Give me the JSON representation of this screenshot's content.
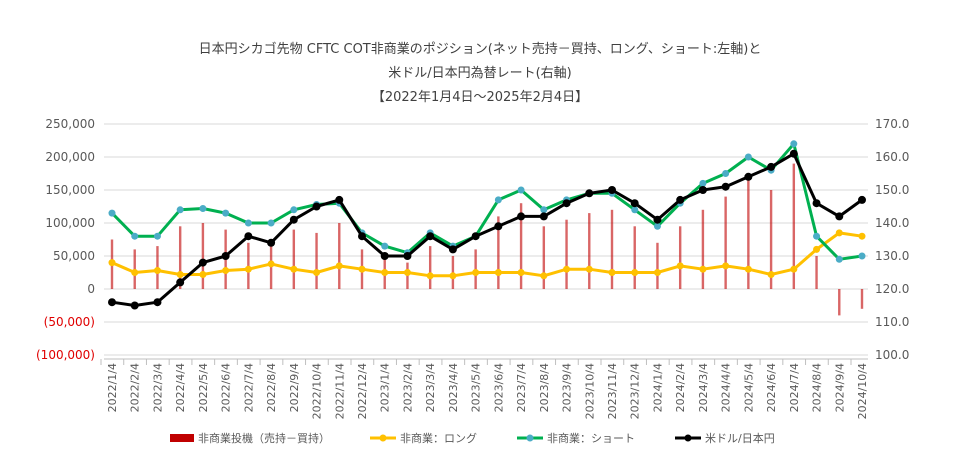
{
  "title_lines": [
    "日本円シカゴ先物 CFTC  COT非商業のポジション(ネット売持－買持、ロング、ショート:左軸)と",
    "米ドル/日本円為替レート(右軸)",
    "【2022年1月4日～2025年2月4日】"
  ],
  "chart_data": {
    "type": "bar+line",
    "title": "日本円シカゴ先物 CFTC  COT非商業のポジション(ネット売持－買持、ロング、ショート:左軸)と 米ドル/日本円為替レート(右軸) 【2022年1月4日～2025年2月4日】",
    "x": [
      "2022/1/4",
      "2022/2/4",
      "2022/3/4",
      "2022/4/4",
      "2022/5/4",
      "2022/6/4",
      "2022/7/4",
      "2022/8/4",
      "2022/9/4",
      "2022/10/4",
      "2022/11/4",
      "2022/12/4",
      "2023/1/4",
      "2023/2/4",
      "2023/3/4",
      "2023/4/4",
      "2023/5/4",
      "2023/6/4",
      "2023/7/4",
      "2023/8/4",
      "2023/9/4",
      "2023/10/4",
      "2023/11/4",
      "2023/12/4",
      "2024/1/4",
      "2024/2/4",
      "2024/3/4",
      "2024/4/4",
      "2024/5/4",
      "2024/6/4",
      "2024/7/4",
      "2024/8/4",
      "2024/9/4",
      "2024/10/4"
    ],
    "left_axis": {
      "min": -100000,
      "max": 250000,
      "ticks": [
        "(100,000)",
        "(50,000)",
        "0",
        "50,000",
        "100,000",
        "150,000",
        "200,000",
        "250,000"
      ],
      "tick_values": [
        -100000,
        -50000,
        0,
        50000,
        100000,
        150000,
        200000,
        250000
      ],
      "negative_color": "#e00000"
    },
    "right_axis": {
      "min": 100,
      "max": 170,
      "ticks": [
        "100.0",
        "110.0",
        "120.0",
        "130.0",
        "140.0",
        "150.0",
        "160.0",
        "170.0"
      ],
      "tick_values": [
        100,
        110,
        120,
        130,
        140,
        150,
        160,
        170
      ]
    },
    "grid": true,
    "legend_placement": "bottom",
    "series": [
      {
        "name": "非商業投機（売持－買持）",
        "type": "bar",
        "axis": "left",
        "color": "#c00000",
        "values": [
          75000,
          60000,
          65000,
          95000,
          100000,
          90000,
          70000,
          65000,
          90000,
          85000,
          100000,
          60000,
          55000,
          40000,
          65000,
          50000,
          60000,
          110000,
          130000,
          95000,
          105000,
          115000,
          120000,
          95000,
          70000,
          95000,
          120000,
          140000,
          170000,
          150000,
          190000,
          50000,
          -40000,
          -30000
        ]
      },
      {
        "name": "非商業：ロング",
        "type": "line",
        "axis": "left",
        "color": "#ffc000",
        "values": [
          40000,
          25000,
          28000,
          22000,
          22000,
          28000,
          30000,
          38000,
          30000,
          25000,
          35000,
          30000,
          25000,
          25000,
          20000,
          20000,
          25000,
          25000,
          25000,
          20000,
          30000,
          30000,
          25000,
          25000,
          25000,
          35000,
          30000,
          35000,
          30000,
          22000,
          30000,
          60000,
          85000,
          80000
        ]
      },
      {
        "name": "非商業：ショート",
        "type": "line",
        "axis": "left",
        "color": "#00b050",
        "marker_color": "#4bacc6",
        "values": [
          115000,
          80000,
          80000,
          120000,
          122000,
          115000,
          100000,
          100000,
          120000,
          128000,
          130000,
          85000,
          65000,
          55000,
          85000,
          65000,
          80000,
          135000,
          150000,
          120000,
          135000,
          145000,
          145000,
          120000,
          95000,
          130000,
          160000,
          175000,
          200000,
          180000,
          220000,
          80000,
          45000,
          50000
        ]
      },
      {
        "name": "米ドル/日本円",
        "type": "line",
        "axis": "right",
        "color": "#000000",
        "values": [
          116,
          115,
          116,
          122,
          128,
          130,
          136,
          134,
          141,
          145,
          147,
          136,
          130,
          130,
          136,
          132,
          136,
          139,
          142,
          142,
          146,
          149,
          150,
          146,
          141,
          147,
          150,
          151,
          154,
          157,
          161,
          146,
          142,
          147
        ]
      }
    ]
  }
}
